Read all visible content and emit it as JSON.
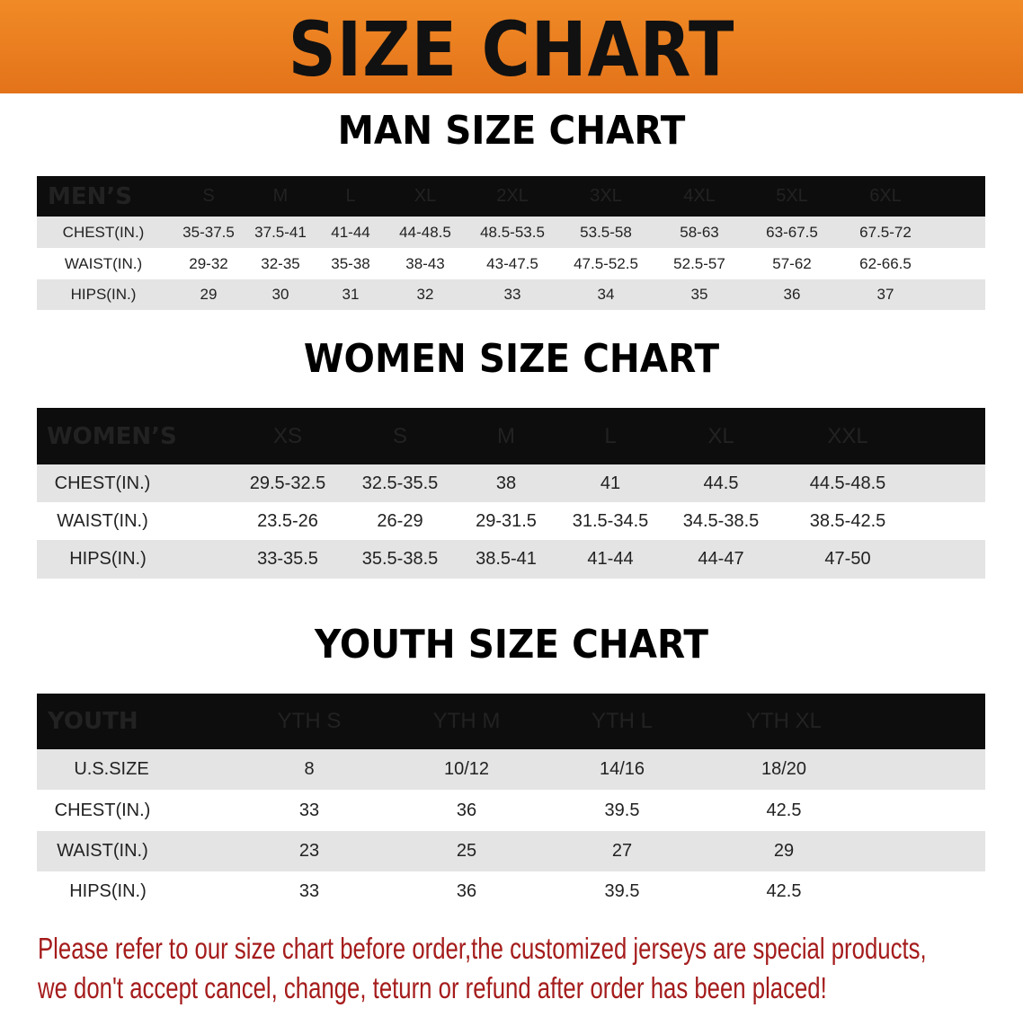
{
  "banner_title": "SIZE CHART",
  "men": {
    "title": "MAN SIZE CHART",
    "header": [
      "MEN’S",
      "S",
      "M",
      "L",
      "XL",
      "2XL",
      "3XL",
      "4XL",
      "5XL",
      "6XL"
    ],
    "rows": [
      [
        "CHEST(IN.)",
        "35-37.5",
        "37.5-41",
        "41-44",
        "44-48.5",
        "48.5-53.5",
        "53.5-58",
        "58-63",
        "63-67.5",
        "67.5-72"
      ],
      [
        "WAIST(IN.)",
        "29-32",
        "32-35",
        "35-38",
        "38-43",
        "43-47.5",
        "47.5-52.5",
        "52.5-57",
        "57-62",
        "62-66.5"
      ],
      [
        "HIPS(IN.)",
        "29",
        "30",
        "31",
        "32",
        "33",
        "34",
        "35",
        "36",
        "37"
      ]
    ]
  },
  "women": {
    "title": "WOMEN SIZE CHART",
    "header": [
      "WOMEN’S",
      "XS",
      "S",
      "M",
      "L",
      "XL",
      "XXL"
    ],
    "rows": [
      [
        "CHEST(IN.)",
        "29.5-32.5",
        "32.5-35.5",
        "38",
        "41",
        "44.5",
        "44.5-48.5"
      ],
      [
        "WAIST(IN.)",
        "23.5-26",
        "26-29",
        "29-31.5",
        "31.5-34.5",
        "34.5-38.5",
        "38.5-42.5"
      ],
      [
        "HIPS(IN.)",
        "33-35.5",
        "35.5-38.5",
        "38.5-41",
        "41-44",
        "44-47",
        "47-50"
      ]
    ]
  },
  "youth": {
    "title": "YOUTH SIZE CHART",
    "header": [
      "YOUTH",
      "YTH S",
      "YTH M",
      "YTH L",
      "YTH XL"
    ],
    "rows": [
      [
        "U.S.SIZE",
        "8",
        "10/12",
        "14/16",
        "18/20"
      ],
      [
        "CHEST(IN.)",
        "33",
        "36",
        "39.5",
        "42.5"
      ],
      [
        "WAIST(IN.)",
        "23",
        "25",
        "27",
        "29"
      ],
      [
        "HIPS(IN.)",
        "33",
        "36",
        "39.5",
        "42.5"
      ]
    ]
  },
  "notice": {
    "line1": "Please refer to our size chart before order,the customized jerseys are special products,",
    "line2": "we don't accept cancel, change, teturn or refund after order has been placed!"
  },
  "colors": {
    "banner": "#e97a1f",
    "header_bg": "#0d0d0d",
    "row_gray": "#e4e4e4",
    "notice": "#a51c1c"
  }
}
